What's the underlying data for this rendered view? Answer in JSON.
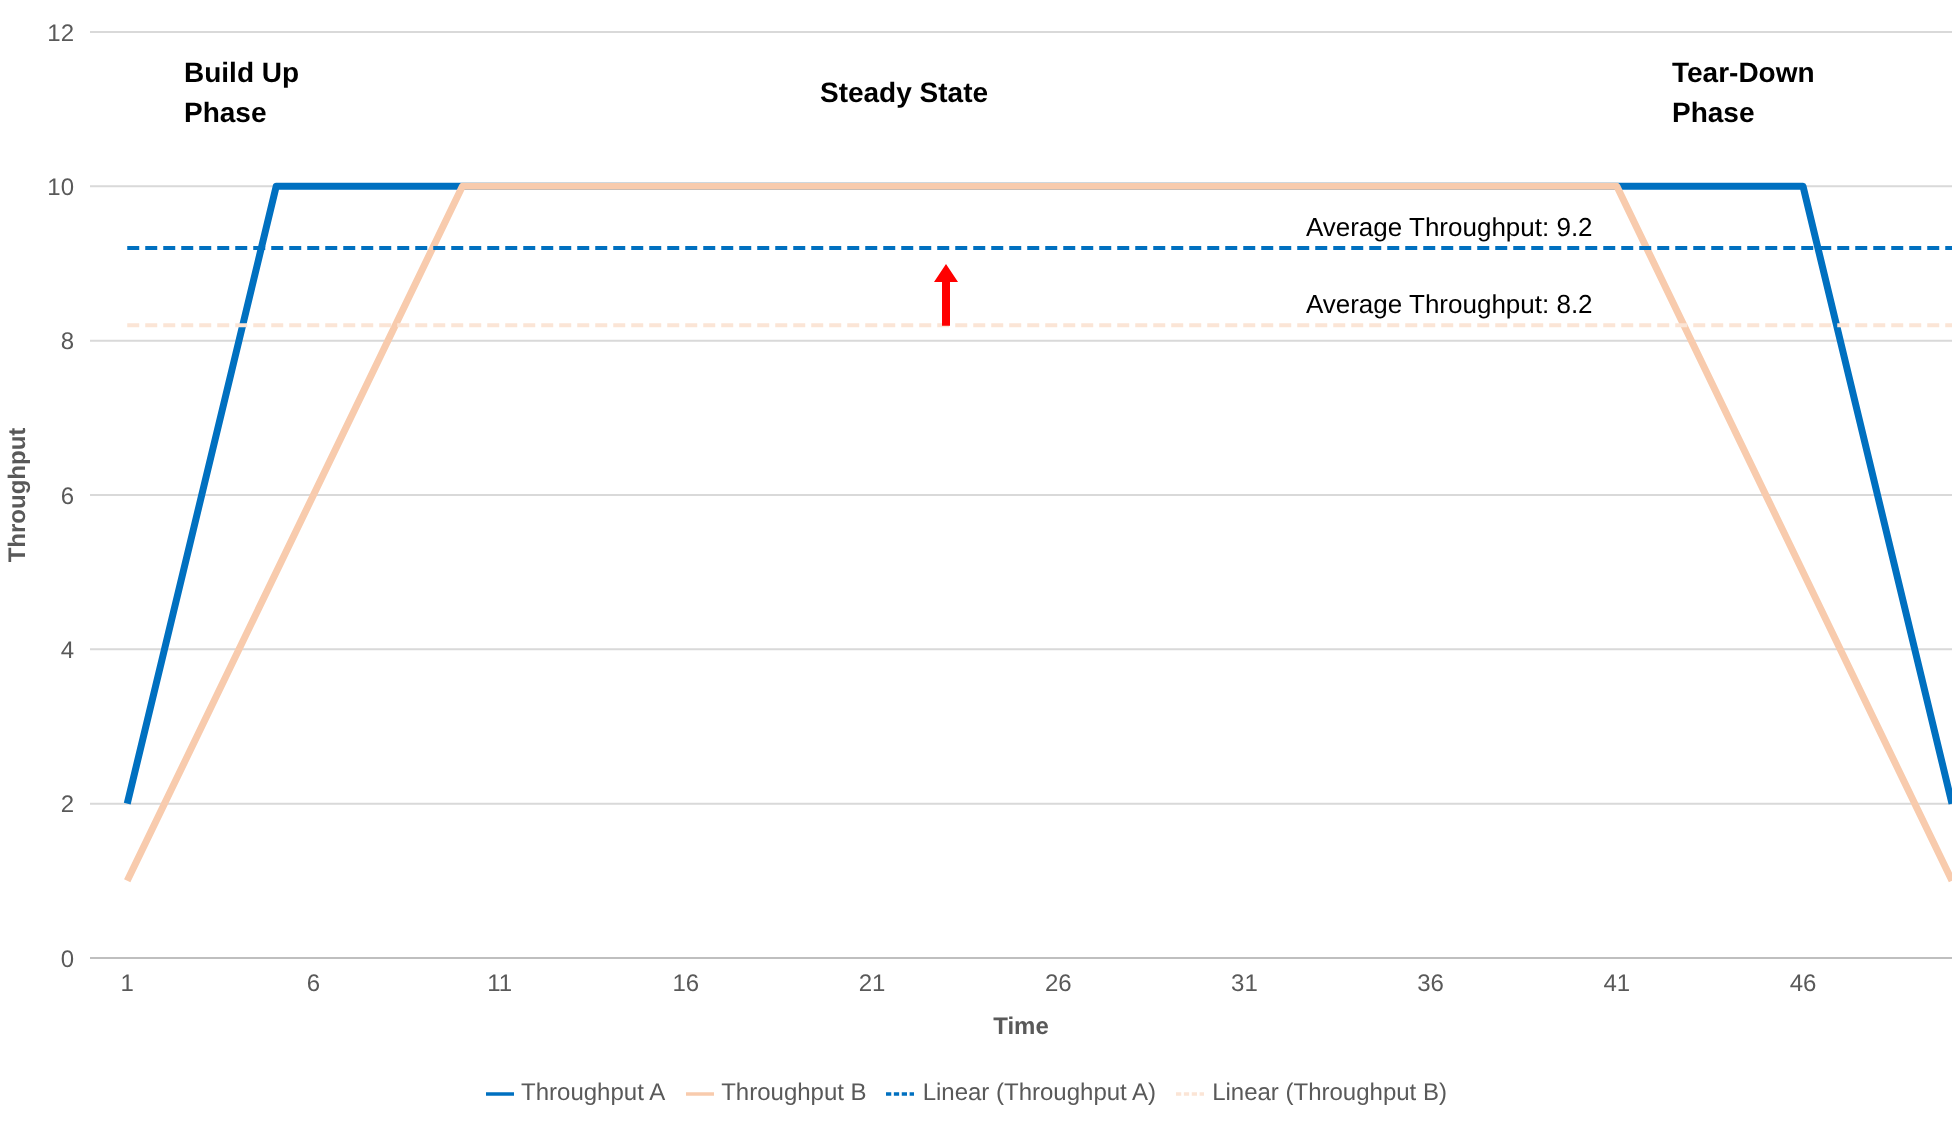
{
  "chart_data": {
    "type": "line",
    "xlabel": "Time",
    "ylabel": "Throughput",
    "xlim": [
      0,
      50
    ],
    "xticks": [
      1,
      6,
      11,
      16,
      21,
      26,
      31,
      36,
      41,
      46
    ],
    "ylim": [
      0,
      12
    ],
    "yticks": [
      0,
      2,
      4,
      6,
      8,
      10,
      12
    ],
    "grid": "y",
    "legend": "bottom",
    "marker": "none",
    "series": [
      {
        "name": "Throughput A",
        "color": "#0070c0",
        "x": [
          1,
          5,
          46,
          50
        ],
        "values": [
          2,
          10,
          10,
          2
        ],
        "line_style": "solid"
      },
      {
        "name": "Throughput B",
        "color": "#f8cbad",
        "x": [
          1,
          10,
          41,
          50
        ],
        "values": [
          1,
          10,
          10,
          1
        ],
        "line_style": "solid"
      },
      {
        "name": "Linear (Throughput A)",
        "color": "#0070c0",
        "x": [
          1,
          50
        ],
        "values": [
          9.2,
          9.2
        ],
        "line_style": "dashed"
      },
      {
        "name": "Linear (Throughput B)",
        "color": "#fbe5d6",
        "x": [
          1,
          50
        ],
        "values": [
          8.2,
          8.2
        ],
        "line_style": "dashed"
      }
    ],
    "annotations": [
      "Build Up Phase",
      "Steady State",
      "Tear-Down Phase",
      {
        "text": "Average Throughput: 9.2",
        "x": 36.5,
        "y": 9.2
      },
      {
        "text": "Average Throughput: 8.2",
        "x": 36.5,
        "y": 8.2
      }
    ]
  }
}
